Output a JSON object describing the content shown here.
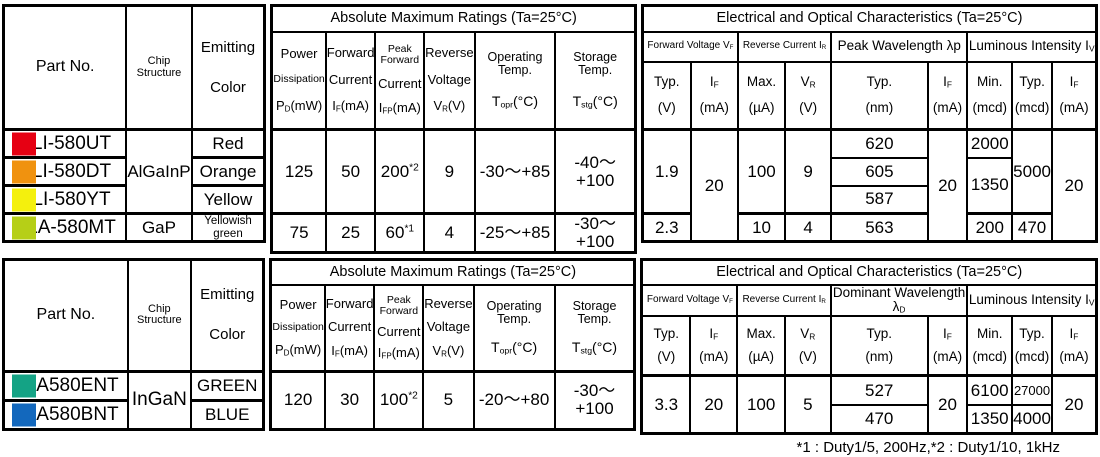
{
  "footnote": "*1 : Duty1/5, 200Hz,*2 : Duty1/10,  1kHz",
  "hdr": {
    "part_no": "Part No.",
    "chip_structure": "Chip Structure",
    "emitting": "Emitting",
    "color": "Color",
    "amr_title": "Absolute Maximum Ratings (Ta=25°C)",
    "eoc_title": "Electrical and Optical Characteristics (Ta=25°C)",
    "pd": {
      "l1": "Power",
      "l2": "Dissipation",
      "l3": "P_{D}(mW)"
    },
    "fc": {
      "l1": "Forward",
      "l2": "Current",
      "l3": "I_{F}(mA)"
    },
    "pfc": {
      "l1": "Peak Forward",
      "l2": "Current",
      "l3": "I_{FP}(mA)"
    },
    "rv": {
      "l1": "Reverse",
      "l2": "Voltage",
      "l3": "V_{R}(V)"
    },
    "opr": {
      "l1": "Operating Temp.",
      "l2": "T_{opr}(°C)"
    },
    "stg": {
      "l1": "Storage Temp.",
      "l2": "T_{stg}(°C)"
    },
    "vf_group": "Forward Voltage V_{F}",
    "ir_group": "Reverse Current I_{R}",
    "wl_group_peak": "Peak Wavelength λp",
    "wl_group_dominant": "Dominant Wavelength λ_{D}",
    "iv_group": "Luminous Intensity I_{V}",
    "typ_v": {
      "l1": "Typ.",
      "l2": "(V)"
    },
    "if_ma": {
      "l1": "I_{F}",
      "l2": "(mA)"
    },
    "max_ua": {
      "l1": "Max.",
      "l2": "(µA)"
    },
    "vr_v": {
      "l1": "V_{R}",
      "l2": "(V)"
    },
    "typ_nm": {
      "l1": "Typ.",
      "l2": "(nm)"
    },
    "min_mcd": {
      "l1": "Min.",
      "l2": "(mcd)"
    },
    "typ_mcd": {
      "l1": "Typ.",
      "l2": "(mcd)"
    }
  },
  "t1": {
    "rows": [
      {
        "swatch": "#e60013",
        "part": "SLI-580UT",
        "color": "Red"
      },
      {
        "swatch": "#f0920f",
        "part": "SLI-580DT",
        "color": "Orange"
      },
      {
        "swatch": "#f4f00d",
        "part": "SLI-580YT",
        "color": "Yellow"
      },
      {
        "swatch": "#b6cf17",
        "part": "SLA-580MT",
        "color": "Yellowish green"
      }
    ],
    "chip_a": "AlGaInP",
    "chip_b": "GaP",
    "amr_a": {
      "pd": "125",
      "if": "50",
      "ifp": "200^{*2}",
      "vr": "9",
      "topr": "-30〜+85",
      "tstg": "-40〜+100"
    },
    "amr_b": {
      "pd": "75",
      "if": "25",
      "ifp": "60^{*1}",
      "vr": "4",
      "topr": "-25〜+85",
      "tstg": "-30〜+100"
    },
    "eoc": {
      "vf_typ_a": "1.9",
      "vf_typ_b": "2.3",
      "vf_if": "20",
      "ir_max_a": "100",
      "ir_max_b": "10",
      "ir_vr_a": "9",
      "ir_vr_b": "4",
      "wl": [
        "620",
        "605",
        "587",
        "563"
      ],
      "wl_if": "20",
      "iv_min_1": "2000",
      "iv_min_23": "1350",
      "iv_min_4": "200",
      "iv_typ_a": "5000",
      "iv_typ_b": "470",
      "iv_if": "20"
    }
  },
  "t2": {
    "rows": [
      {
        "swatch": "#14a385",
        "part": "SLA580ENT",
        "color": "GREEN"
      },
      {
        "swatch": "#1368bd",
        "part": "SLA580BNT",
        "color": "BLUE"
      }
    ],
    "chip": "InGaN",
    "amr": {
      "pd": "120",
      "if": "30",
      "ifp": "100^{*2}",
      "vr": "5",
      "topr": "-20〜+80",
      "tstg": "-30〜+100"
    },
    "eoc": {
      "vf_typ": "3.3",
      "vf_if": "20",
      "ir_max": "100",
      "ir_vr": "5",
      "wl": [
        "527",
        "470"
      ],
      "wl_if": "20",
      "iv_min": [
        "6100",
        "1350"
      ],
      "iv_typ": [
        "27000",
        "4000"
      ],
      "iv_if": "20"
    }
  }
}
